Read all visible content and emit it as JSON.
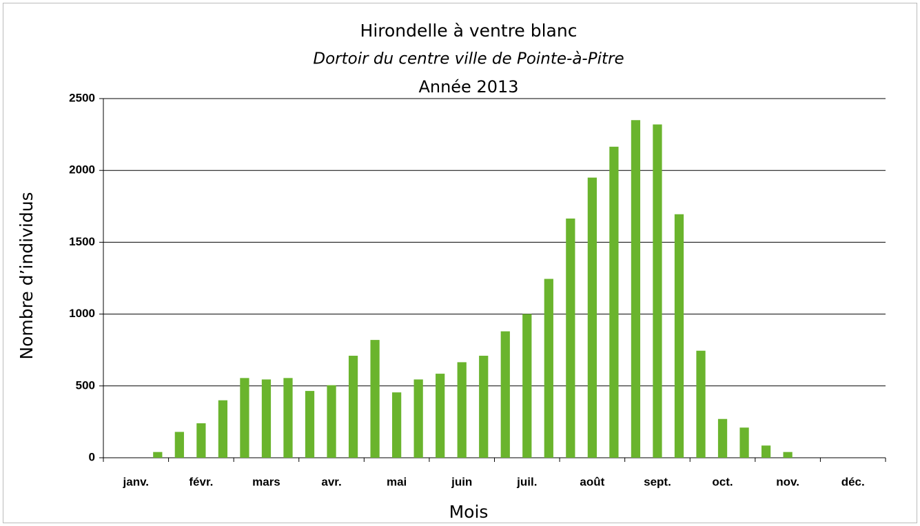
{
  "chart_data": {
    "type": "bar",
    "title": "Hirondelle à ventre blanc",
    "subtitle": "Dortoir du centre ville de Pointe-à-Pitre",
    "subtitle2": "Année 2013",
    "x_label": "Mois",
    "y_label": "Nombre d’individus",
    "categories": [
      null,
      "janv.",
      null,
      null,
      "févr.",
      null,
      null,
      "mars",
      null,
      null,
      "avr.",
      null,
      null,
      "mai",
      null,
      null,
      "juin",
      null,
      null,
      "juil.",
      null,
      null,
      "août",
      null,
      null,
      "sept.",
      null,
      null,
      "oct.",
      null,
      null,
      "nov.",
      null,
      null,
      "déc.",
      null
    ],
    "values": [
      0,
      0,
      40,
      180,
      240,
      400,
      555,
      545,
      555,
      465,
      505,
      710,
      820,
      455,
      545,
      585,
      665,
      710,
      880,
      1000,
      1245,
      1665,
      1950,
      2165,
      2350,
      2320,
      1695,
      745,
      270,
      210,
      85,
      40,
      0,
      0,
      0,
      0
    ],
    "color": "#6ab42d",
    "ylim": [
      0,
      2500
    ],
    "yticks": [
      0,
      500,
      1000,
      1500,
      2000,
      2500
    ],
    "grid": true
  }
}
